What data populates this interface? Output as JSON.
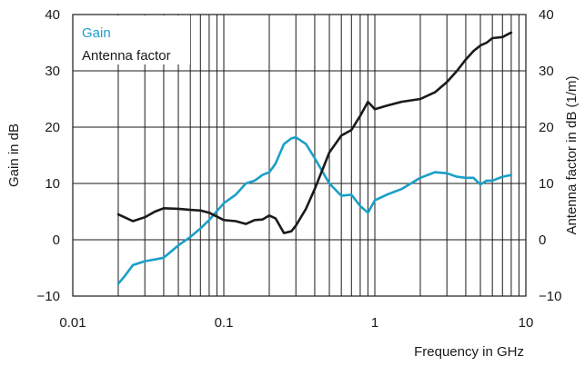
{
  "chart_data": {
    "type": "line",
    "x_scale": "log",
    "xlim": [
      0.01,
      10
    ],
    "xticks": [
      0.01,
      0.1,
      1,
      10
    ],
    "xtick_labels": [
      "0.01",
      "0.1",
      "1",
      "10"
    ],
    "ylim": [
      -10,
      40
    ],
    "yticks": [
      -10,
      0,
      10,
      20,
      30,
      40
    ],
    "ytick_labels": [
      "−10",
      "0",
      "10",
      "20",
      "30",
      "40"
    ],
    "y2lim": [
      -10,
      40
    ],
    "y2tick_labels": [
      "−10",
      "0",
      "10",
      "20",
      "30",
      "40"
    ],
    "xlabel": "Frequency in GHz",
    "ylabel": "Gain in dB",
    "y2label": "Antenna factor in dB (1/m)",
    "grid": true,
    "legend_position": "top-left",
    "series": [
      {
        "name": "Gain",
        "axis": "left",
        "color": "#1a9fc9",
        "x": [
          0.02,
          0.022,
          0.025,
          0.03,
          0.035,
          0.04,
          0.05,
          0.06,
          0.07,
          0.08,
          0.1,
          0.12,
          0.14,
          0.16,
          0.18,
          0.2,
          0.22,
          0.25,
          0.28,
          0.3,
          0.35,
          0.4,
          0.5,
          0.6,
          0.7,
          0.8,
          0.9,
          1.0,
          1.2,
          1.5,
          2.0,
          2.5,
          3.0,
          3.5,
          4.0,
          4.5,
          5.0,
          5.5,
          6.0,
          7.0,
          8.0
        ],
        "y": [
          -7.8,
          -6.5,
          -4.5,
          -3.8,
          -3.5,
          -3.2,
          -1.0,
          0.5,
          2.0,
          3.5,
          6.5,
          8.0,
          10.0,
          10.5,
          11.5,
          12.0,
          13.5,
          17.0,
          18.0,
          18.2,
          17.0,
          14.5,
          10.0,
          7.8,
          8.0,
          6.0,
          4.8,
          7.0,
          8.0,
          9.0,
          11.0,
          12.0,
          11.8,
          11.2,
          11.0,
          11.0,
          9.8,
          10.5,
          10.5,
          11.2,
          11.5
        ]
      },
      {
        "name": "Antenna factor",
        "axis": "right",
        "color": "#1a1a1a",
        "x": [
          0.02,
          0.022,
          0.025,
          0.03,
          0.035,
          0.04,
          0.05,
          0.06,
          0.07,
          0.08,
          0.1,
          0.12,
          0.14,
          0.16,
          0.18,
          0.2,
          0.22,
          0.25,
          0.28,
          0.3,
          0.35,
          0.4,
          0.5,
          0.6,
          0.7,
          0.8,
          0.9,
          1.0,
          1.2,
          1.5,
          2.0,
          2.5,
          3.0,
          3.5,
          4.0,
          4.5,
          5.0,
          5.5,
          6.0,
          7.0,
          8.0
        ],
        "y": [
          4.5,
          4.0,
          3.3,
          4.0,
          5.0,
          5.6,
          5.5,
          5.3,
          5.2,
          4.8,
          3.5,
          3.3,
          2.8,
          3.5,
          3.6,
          4.3,
          3.8,
          1.2,
          1.5,
          2.5,
          5.5,
          9.0,
          15.5,
          18.5,
          19.5,
          22.0,
          24.5,
          23.2,
          23.8,
          24.5,
          25.0,
          26.2,
          28.0,
          30.0,
          32.0,
          33.5,
          34.5,
          35.0,
          35.8,
          36.0,
          36.8
        ]
      }
    ]
  }
}
